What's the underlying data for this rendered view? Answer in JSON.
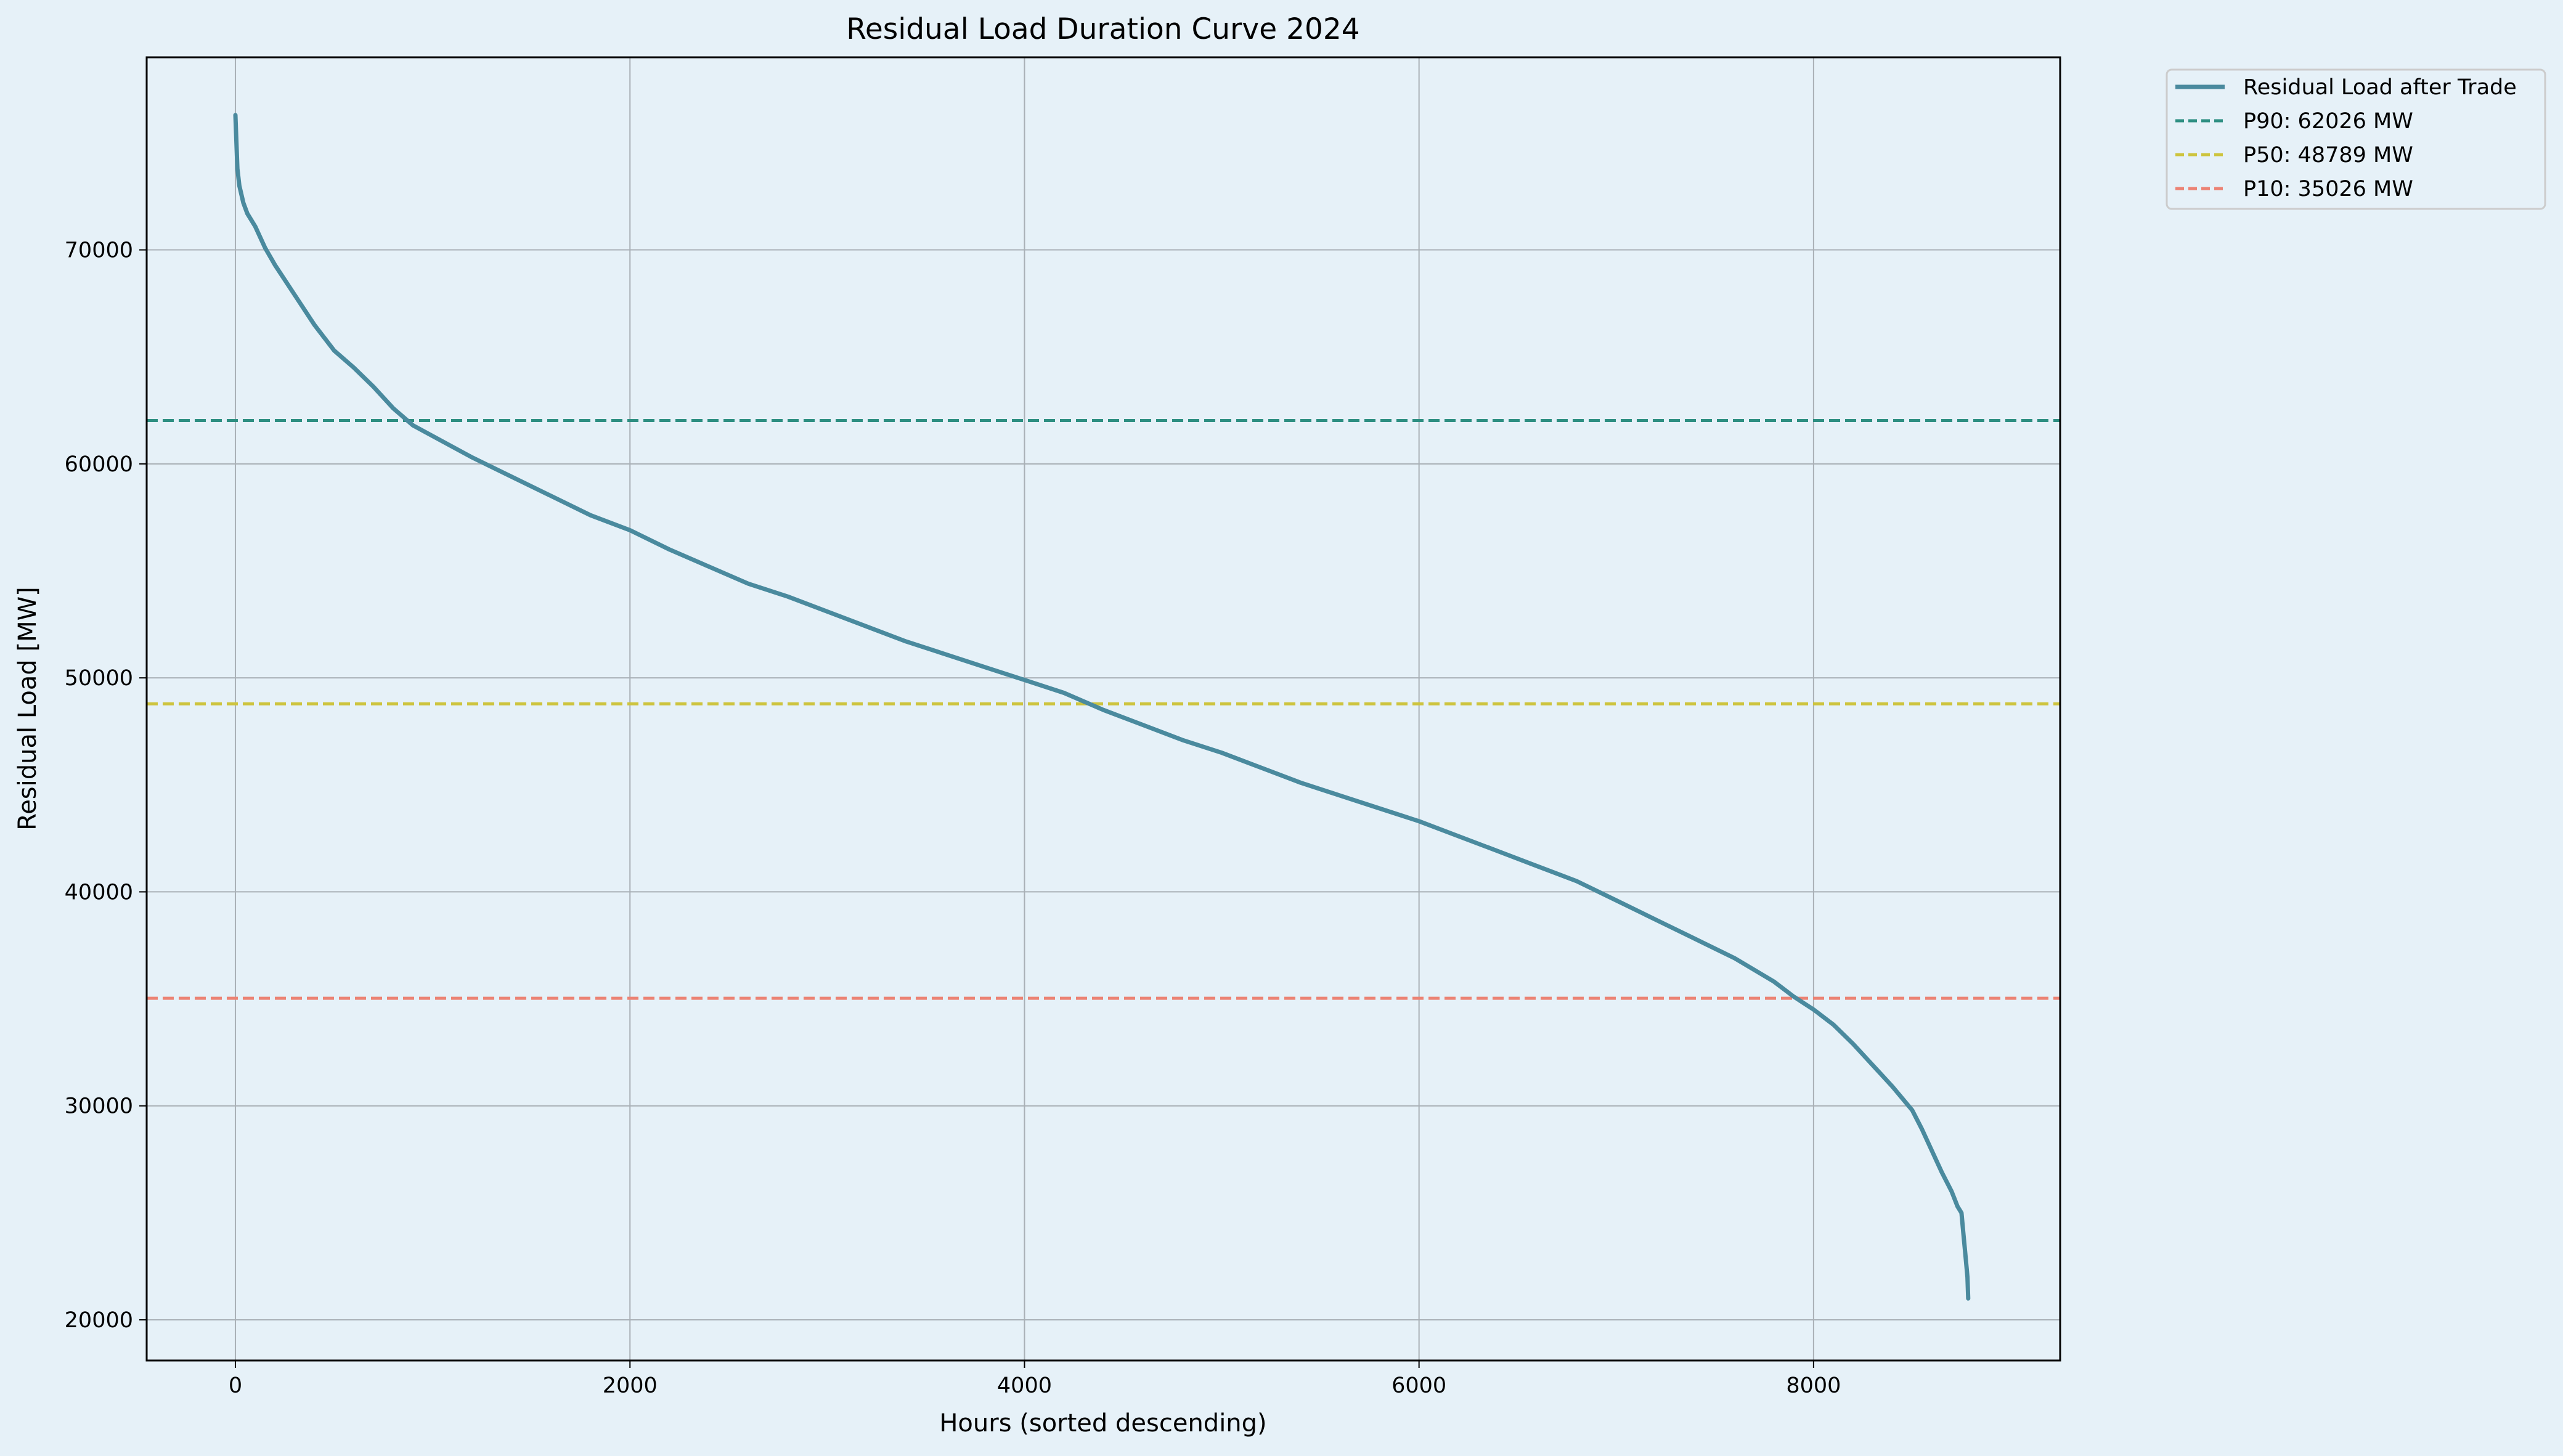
{
  "chart_data": {
    "type": "line",
    "title": "Residual Load Duration Curve 2024",
    "xlabel": "Hours (sorted descending)",
    "ylabel": "Residual Load [MW]",
    "xlim": [
      -450,
      9250
    ],
    "ylim": [
      18100,
      79000
    ],
    "xticks": [
      0,
      2000,
      4000,
      6000,
      8000
    ],
    "yticks": [
      20000,
      30000,
      40000,
      50000,
      60000,
      70000
    ],
    "grid": true,
    "legend_position": "outside-top-right",
    "background_color": "#e6f1f8",
    "series": [
      {
        "name": "Residual Load after Trade",
        "style": "solid",
        "color": "#4a8a9e",
        "x": [
          0,
          10,
          20,
          40,
          60,
          100,
          150,
          200,
          300,
          400,
          500,
          600,
          700,
          800,
          900,
          1000,
          1200,
          1400,
          1600,
          1800,
          2000,
          2200,
          2400,
          2600,
          2800,
          3000,
          3200,
          3400,
          3600,
          3800,
          4000,
          4200,
          4400,
          4600,
          4800,
          5000,
          5200,
          5400,
          5600,
          5800,
          6000,
          6200,
          6400,
          6600,
          6800,
          7000,
          7200,
          7400,
          7600,
          7800,
          7900,
          8000,
          8100,
          8200,
          8300,
          8400,
          8500,
          8550,
          8600,
          8650,
          8700,
          8730,
          8750,
          8760,
          8770,
          8780,
          8784
        ],
        "values": [
          76300,
          73800,
          73000,
          72200,
          71700,
          71100,
          70100,
          69300,
          67900,
          66500,
          65300,
          64500,
          63600,
          62600,
          61800,
          61300,
          60300,
          59400,
          58500,
          57600,
          56900,
          56000,
          55200,
          54400,
          53800,
          53100,
          52400,
          51700,
          51100,
          50500,
          49900,
          49300,
          48500,
          47800,
          47100,
          46500,
          45800,
          45100,
          44500,
          43900,
          43300,
          42600,
          41900,
          41200,
          40500,
          39600,
          38700,
          37800,
          36900,
          35800,
          35100,
          34500,
          33800,
          32900,
          31900,
          30900,
          29800,
          28900,
          27900,
          26900,
          26000,
          25300,
          25000,
          24000,
          23000,
          22000,
          21000
        ]
      },
      {
        "name": "P90: 62026 MW",
        "style": "dashed",
        "color": "#2e8f82",
        "value": 62026
      },
      {
        "name": "P50: 48789 MW",
        "style": "dashed",
        "color": "#cdc43e",
        "value": 48789
      },
      {
        "name": "P10: 35026 MW",
        "style": "dashed",
        "color": "#ec8374",
        "value": 35026
      }
    ]
  }
}
